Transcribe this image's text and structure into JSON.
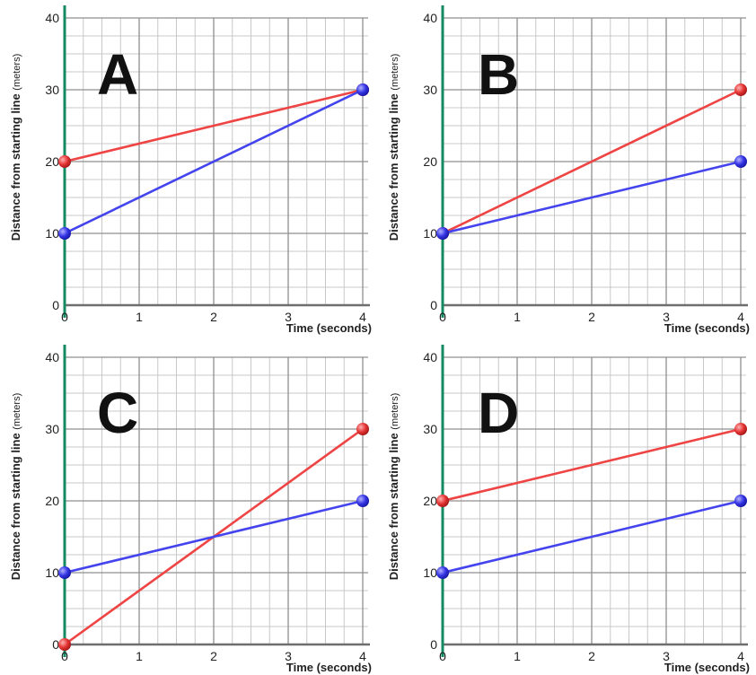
{
  "axis_labels": {
    "ylabel": "Distance from starting line",
    "yunit": "(meters)",
    "xlabel": "Time (seconds)"
  },
  "colors": {
    "red_series": "#ee4444",
    "blue_series": "#4444ee",
    "y_axis": "#138a62",
    "grid": "#c8c8c8"
  },
  "chart_data": [
    {
      "type": "line",
      "label": "A",
      "xlim": [
        0,
        4
      ],
      "ylim": [
        0,
        40
      ],
      "x_ticks": [
        0,
        1,
        2,
        3,
        4
      ],
      "y_ticks": [
        0,
        10,
        20,
        30,
        40
      ],
      "grid": true,
      "series": [
        {
          "color": "red",
          "points": [
            [
              0,
              20
            ],
            [
              4,
              30
            ]
          ]
        },
        {
          "color": "blue",
          "points": [
            [
              0,
              10
            ],
            [
              4,
              30
            ]
          ]
        }
      ]
    },
    {
      "type": "line",
      "label": "B",
      "xlim": [
        0,
        4
      ],
      "ylim": [
        0,
        40
      ],
      "x_ticks": [
        0,
        1,
        2,
        3,
        4
      ],
      "y_ticks": [
        0,
        10,
        20,
        30,
        40
      ],
      "grid": true,
      "series": [
        {
          "color": "red",
          "points": [
            [
              0,
              10
            ],
            [
              4,
              30
            ]
          ]
        },
        {
          "color": "blue",
          "points": [
            [
              0,
              10
            ],
            [
              4,
              20
            ]
          ]
        }
      ]
    },
    {
      "type": "line",
      "label": "C",
      "xlim": [
        0,
        4
      ],
      "ylim": [
        0,
        40
      ],
      "x_ticks": [
        0,
        1,
        2,
        3,
        4
      ],
      "y_ticks": [
        0,
        10,
        20,
        30,
        40
      ],
      "grid": true,
      "series": [
        {
          "color": "red",
          "points": [
            [
              0,
              0
            ],
            [
              4,
              30
            ]
          ]
        },
        {
          "color": "blue",
          "points": [
            [
              0,
              10
            ],
            [
              4,
              20
            ]
          ]
        }
      ]
    },
    {
      "type": "line",
      "label": "D",
      "xlim": [
        0,
        4
      ],
      "ylim": [
        0,
        40
      ],
      "x_ticks": [
        0,
        1,
        2,
        3,
        4
      ],
      "y_ticks": [
        0,
        10,
        20,
        30,
        40
      ],
      "grid": true,
      "series": [
        {
          "color": "red",
          "points": [
            [
              0,
              20
            ],
            [
              4,
              30
            ]
          ]
        },
        {
          "color": "blue",
          "points": [
            [
              0,
              10
            ],
            [
              4,
              20
            ]
          ]
        }
      ]
    }
  ]
}
